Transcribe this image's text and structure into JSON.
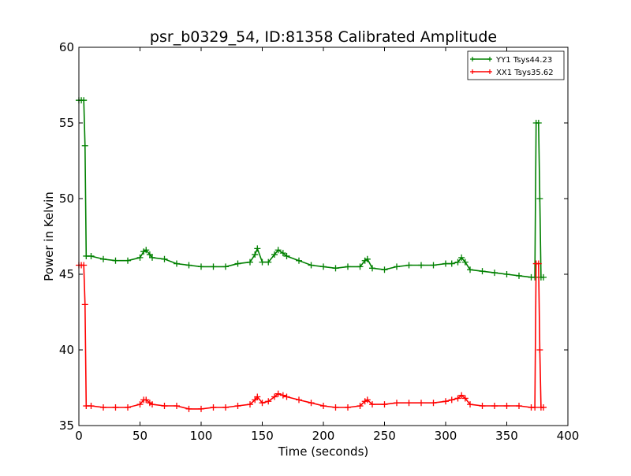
{
  "chart_data": {
    "type": "line",
    "title": "psr_b0329_54, ID:81358 Calibrated Amplitude",
    "xlabel": "Time (seconds)",
    "ylabel": "Power in Kelvin",
    "xlim": [
      0,
      400
    ],
    "ylim": [
      35,
      60
    ],
    "xticks": [
      0,
      50,
      100,
      150,
      200,
      250,
      300,
      350,
      400
    ],
    "yticks": [
      35,
      40,
      45,
      50,
      55,
      60
    ],
    "grid": false,
    "legend_position": "top-right",
    "series": [
      {
        "name": "YY1 Tsys44.23",
        "color": "#008000",
        "x": [
          0,
          2,
          4,
          5,
          6,
          10,
          20,
          30,
          40,
          50,
          53,
          55,
          58,
          60,
          70,
          80,
          90,
          100,
          110,
          120,
          130,
          140,
          144,
          146,
          150,
          155,
          160,
          163,
          167,
          170,
          180,
          190,
          200,
          210,
          220,
          230,
          234,
          236,
          240,
          250,
          260,
          270,
          280,
          290,
          300,
          305,
          310,
          313,
          316,
          320,
          330,
          340,
          350,
          360,
          370,
          373,
          374,
          376,
          377,
          378,
          380
        ],
        "y": [
          56.5,
          56.5,
          56.5,
          53.5,
          46.2,
          46.2,
          46.0,
          45.9,
          45.9,
          46.1,
          46.5,
          46.6,
          46.3,
          46.1,
          46.0,
          45.7,
          45.6,
          45.5,
          45.5,
          45.5,
          45.7,
          45.8,
          46.3,
          46.7,
          45.8,
          45.8,
          46.3,
          46.6,
          46.4,
          46.2,
          45.9,
          45.6,
          45.5,
          45.4,
          45.5,
          45.5,
          45.9,
          46.0,
          45.4,
          45.3,
          45.5,
          45.6,
          45.6,
          45.6,
          45.7,
          45.7,
          45.8,
          46.1,
          45.8,
          45.3,
          45.2,
          45.1,
          45.0,
          44.9,
          44.8,
          44.8,
          55.0,
          55.0,
          50.0,
          44.8,
          44.8
        ]
      },
      {
        "name": "XX1 Tsys35.62",
        "color": "#ff0000",
        "x": [
          0,
          2,
          4,
          5,
          6,
          10,
          20,
          30,
          40,
          50,
          53,
          55,
          58,
          60,
          70,
          80,
          90,
          100,
          110,
          120,
          130,
          140,
          144,
          146,
          150,
          155,
          160,
          163,
          167,
          170,
          180,
          190,
          200,
          210,
          220,
          230,
          234,
          236,
          240,
          250,
          260,
          270,
          280,
          290,
          300,
          305,
          310,
          313,
          316,
          320,
          330,
          340,
          350,
          360,
          370,
          373,
          374,
          376,
          377,
          378,
          380
        ],
        "y": [
          45.6,
          45.6,
          45.6,
          43.0,
          36.3,
          36.3,
          36.2,
          36.2,
          36.2,
          36.4,
          36.7,
          36.7,
          36.5,
          36.4,
          36.3,
          36.3,
          36.1,
          36.1,
          36.2,
          36.2,
          36.3,
          36.4,
          36.7,
          36.9,
          36.5,
          36.6,
          36.9,
          37.1,
          37.0,
          36.9,
          36.7,
          36.5,
          36.3,
          36.2,
          36.2,
          36.3,
          36.6,
          36.7,
          36.4,
          36.4,
          36.5,
          36.5,
          36.5,
          36.5,
          36.6,
          36.7,
          36.8,
          37.0,
          36.8,
          36.4,
          36.3,
          36.3,
          36.3,
          36.3,
          36.2,
          36.2,
          45.7,
          45.7,
          40.0,
          36.2,
          36.2
        ]
      }
    ]
  }
}
